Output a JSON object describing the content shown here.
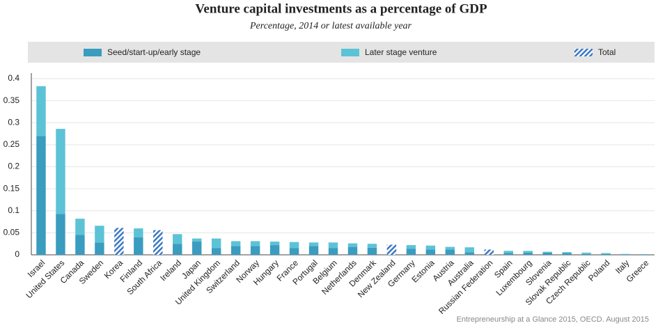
{
  "chart_data": {
    "type": "stacked-bar",
    "title": "Venture capital investments as a percentage of GDP",
    "subtitle": "Percentage, 2014 or latest available year",
    "source": "Entrepreneurship at a Glance 2015, OECD. August 2015",
    "categories": [
      "Israel",
      "United States",
      "Canada",
      "Sweden",
      "Korea",
      "Finland",
      "South Africa",
      "Ireland",
      "Japan",
      "United Kingdom",
      "Switzerland",
      "Norway",
      "Hungary",
      "France",
      "Portugal",
      "Belgium",
      "Netherlands",
      "Denmark",
      "New Zealand",
      "Germany",
      "Estonia",
      "Austria",
      "Australia",
      "Russian Federation",
      "Spain",
      "Luxembourg",
      "Slovenia",
      "Slovak Republic",
      "Czech Republic",
      "Poland",
      "Italy",
      "Greece"
    ],
    "series": [
      {
        "name": "Seed/start-up/early stage",
        "color": "#3a9cbf",
        "values": [
          0.27,
          0.093,
          0.045,
          0.028,
          null,
          0.04,
          null,
          0.025,
          0.03,
          0.015,
          0.02,
          0.02,
          0.022,
          0.015,
          0.02,
          0.015,
          0.018,
          0.016,
          null,
          0.014,
          0.012,
          0.012,
          0.006,
          null,
          0.004,
          0.005,
          0.005,
          0.004,
          0.002,
          0.002,
          0.001,
          0.001
        ]
      },
      {
        "name": "Later stage venture",
        "color": "#5cc3d6",
        "values": [
          0.113,
          0.193,
          0.037,
          0.038,
          null,
          0.02,
          null,
          0.022,
          0.007,
          0.022,
          0.011,
          0.011,
          0.008,
          0.014,
          0.008,
          0.013,
          0.008,
          0.009,
          null,
          0.008,
          0.009,
          0.006,
          0.011,
          null,
          0.005,
          0.004,
          0.002,
          0.002,
          0.003,
          0.002,
          0.001,
          0.0005
        ]
      },
      {
        "name": "Total",
        "color": "#3b78c4",
        "pattern": "hatch",
        "values": [
          null,
          null,
          null,
          null,
          0.061,
          null,
          0.056,
          null,
          null,
          null,
          null,
          null,
          null,
          null,
          null,
          null,
          null,
          null,
          0.023,
          null,
          null,
          null,
          null,
          0.012,
          null,
          null,
          null,
          null,
          null,
          null,
          null,
          null
        ]
      }
    ],
    "ylim": [
      0,
      0.4
    ],
    "yticks": [
      0,
      0.05,
      0.1,
      0.15,
      0.2,
      0.25,
      0.3,
      0.35,
      0.4
    ],
    "grid": true
  }
}
